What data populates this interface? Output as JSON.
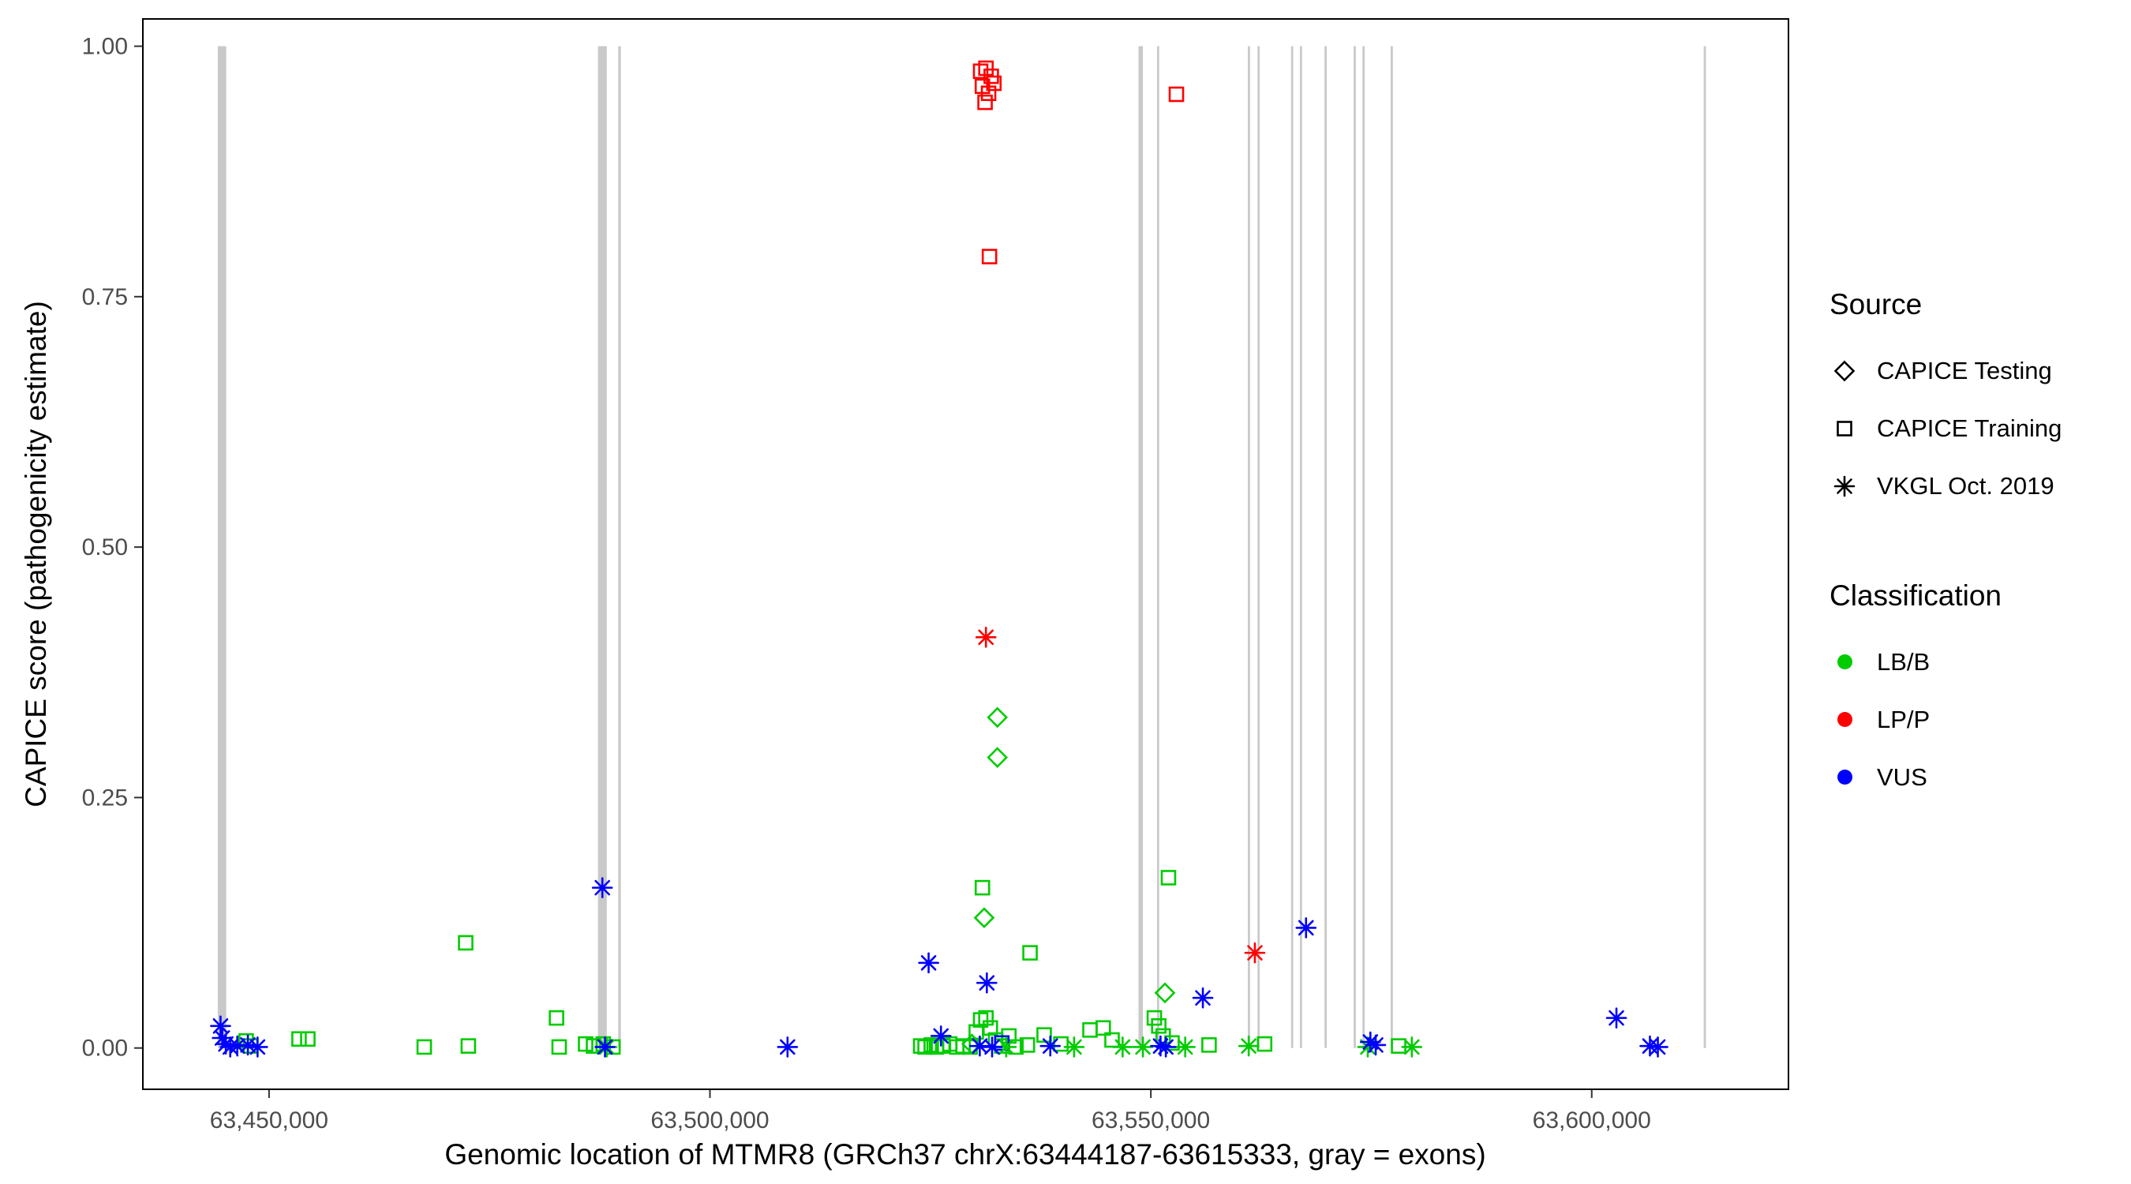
{
  "figure": {
    "background": "#ffffff",
    "panel_border_color": "#000000",
    "exon_color": "#c9c9c9",
    "tick_color": "#333333",
    "tick_label_color": "#4d4d4d"
  },
  "axes": {
    "x": {
      "title": "Genomic location of MTMR8 (GRCh37 chrX:63444187-63615333, gray = exons)",
      "ticks": [
        63450000,
        63500000,
        63550000,
        63600000
      ],
      "tick_labels": [
        "63,450,000",
        "63,500,000",
        "63,550,000",
        "63,600,000"
      ]
    },
    "y": {
      "title": "CAPICE score (pathogenicity estimate)",
      "ticks": [
        0,
        0.25,
        0.5,
        0.75,
        1
      ],
      "tick_labels": [
        "0.00",
        "0.25",
        "0.50",
        "0.75",
        "1.00"
      ]
    }
  },
  "legend": {
    "source": {
      "title": "Source",
      "items": [
        {
          "label": "CAPICE Testing",
          "shape": "diamond"
        },
        {
          "label": "CAPICE Training",
          "shape": "square"
        },
        {
          "label": "VKGL Oct. 2019",
          "shape": "asterisk"
        }
      ]
    },
    "classification": {
      "title": "Classification",
      "items": [
        {
          "label": "LB/B",
          "color": "#00cc00"
        },
        {
          "label": "LP/P",
          "color": "#ff0000"
        },
        {
          "label": "VUS",
          "color": "#0000ff"
        }
      ]
    }
  },
  "chart_data": {
    "type": "scatter",
    "title": "",
    "xlabel": "Genomic location of MTMR8 (GRCh37 chrX:63444187-63615333, gray = exons)",
    "ylabel": "CAPICE score (pathogenicity estimate)",
    "xlim": [
      63435600,
      63622400
    ],
    "ylim": [
      -0.042,
      1.028
    ],
    "grid": false,
    "legend_position": "right",
    "exons": [
      [
        63444187,
        63445150
      ],
      [
        63487300,
        63488300
      ],
      [
        63489600,
        63489900
      ],
      [
        63548600,
        63549100
      ],
      [
        63550700,
        63550950
      ],
      [
        63561000,
        63561250
      ],
      [
        63562100,
        63562350
      ],
      [
        63565900,
        63566150
      ],
      [
        63566900,
        63567150
      ],
      [
        63569700,
        63569950
      ],
      [
        63573000,
        63573250
      ],
      [
        63574000,
        63574250
      ],
      [
        63577200,
        63577450
      ],
      [
        63612700,
        63612950
      ]
    ],
    "series": [
      {
        "name": "CAPICE Testing",
        "classification": "LB/B",
        "shape": "diamond",
        "color": "#00cc00",
        "points": [
          [
            63532600,
            0.33
          ],
          [
            63532600,
            0.29
          ],
          [
            63531100,
            0.13
          ],
          [
            63551600,
            0.055
          ],
          [
            63529700,
            0.004
          ]
        ]
      },
      {
        "name": "CAPICE Training",
        "classification": "LB/B",
        "shape": "square",
        "color": "#00cc00",
        "points": [
          [
            63447400,
            0.007
          ],
          [
            63447900,
            0.002
          ],
          [
            63453400,
            0.009
          ],
          [
            63454400,
            0.009
          ],
          [
            63467600,
            0.001
          ],
          [
            63472300,
            0.105
          ],
          [
            63472600,
            0.002
          ],
          [
            63482600,
            0.03
          ],
          [
            63482900,
            0.001
          ],
          [
            63485900,
            0.004
          ],
          [
            63486800,
            0.002
          ],
          [
            63487900,
            0.004
          ],
          [
            63489000,
            0.001
          ],
          [
            63523900,
            0.002
          ],
          [
            63524400,
            0.001
          ],
          [
            63525100,
            0.003
          ],
          [
            63525700,
            0.001
          ],
          [
            63526400,
            0.002
          ],
          [
            63527200,
            0.004
          ],
          [
            63528000,
            0.001
          ],
          [
            63528700,
            0.002
          ],
          [
            63529500,
            0.001
          ],
          [
            63530200,
            0.016
          ],
          [
            63530700,
            0.028
          ],
          [
            63531300,
            0.03
          ],
          [
            63531800,
            0.02
          ],
          [
            63530900,
            0.16
          ],
          [
            63532400,
            0.008
          ],
          [
            63533100,
            0.002
          ],
          [
            63533900,
            0.012
          ],
          [
            63534700,
            0.001
          ],
          [
            63536300,
            0.095
          ],
          [
            63536000,
            0.003
          ],
          [
            63537900,
            0.013
          ],
          [
            63539800,
            0.004
          ],
          [
            63543100,
            0.018
          ],
          [
            63544600,
            0.02
          ],
          [
            63545600,
            0.008
          ],
          [
            63550400,
            0.03
          ],
          [
            63550900,
            0.022
          ],
          [
            63551400,
            0.012
          ],
          [
            63552000,
            0.17
          ],
          [
            63552400,
            0.005
          ],
          [
            63556600,
            0.003
          ],
          [
            63562900,
            0.004
          ],
          [
            63578100,
            0.002
          ]
        ]
      },
      {
        "name": "CAPICE Training",
        "classification": "LP/P",
        "shape": "square",
        "color": "#ff0000",
        "points": [
          [
            63530700,
            0.975
          ],
          [
            63531300,
            0.978
          ],
          [
            63531900,
            0.97
          ],
          [
            63530900,
            0.96
          ],
          [
            63531600,
            0.953
          ],
          [
            63532200,
            0.963
          ],
          [
            63531200,
            0.944
          ],
          [
            63531700,
            0.79
          ],
          [
            63552900,
            0.952
          ]
        ]
      },
      {
        "name": "CAPICE Training",
        "classification": "VUS",
        "shape": "square",
        "color": "#0000ff",
        "points": [
          [
            63533100,
            0.005
          ]
        ]
      },
      {
        "name": "VKGL Oct. 2019",
        "classification": "LB/B",
        "shape": "asterisk",
        "color": "#00cc00",
        "points": [
          [
            63488300,
            0.001
          ],
          [
            63533600,
            0.001
          ],
          [
            63541300,
            0.001
          ],
          [
            63546800,
            0.001
          ],
          [
            63549100,
            0.001
          ],
          [
            63553900,
            0.001
          ],
          [
            63561100,
            0.002
          ],
          [
            63574600,
            0.001
          ],
          [
            63579600,
            0.001
          ]
        ]
      },
      {
        "name": "VKGL Oct. 2019",
        "classification": "LP/P",
        "shape": "asterisk",
        "color": "#ff0000",
        "points": [
          [
            63531300,
            0.41
          ],
          [
            63561800,
            0.095
          ]
        ]
      },
      {
        "name": "VKGL Oct. 2019",
        "classification": "VUS",
        "shape": "asterisk",
        "color": "#0000ff",
        "points": [
          [
            63444500,
            0.022
          ],
          [
            63444700,
            0.01
          ],
          [
            63445100,
            0.004
          ],
          [
            63445600,
            0.001
          ],
          [
            63446400,
            0.002
          ],
          [
            63447600,
            0.003
          ],
          [
            63448700,
            0.001
          ],
          [
            63487800,
            0.16
          ],
          [
            63488100,
            0.001
          ],
          [
            63508800,
            0.001
          ],
          [
            63524800,
            0.085
          ],
          [
            63526200,
            0.012
          ],
          [
            63531400,
            0.065
          ],
          [
            63530600,
            0.002
          ],
          [
            63532000,
            0.001
          ],
          [
            63538600,
            0.002
          ],
          [
            63551100,
            0.002
          ],
          [
            63551700,
            0.001
          ],
          [
            63555900,
            0.05
          ],
          [
            63567600,
            0.12
          ],
          [
            63574900,
            0.006
          ],
          [
            63575500,
            0.003
          ],
          [
            63602800,
            0.03
          ],
          [
            63606600,
            0.002
          ],
          [
            63607500,
            0.001
          ]
        ]
      }
    ]
  }
}
